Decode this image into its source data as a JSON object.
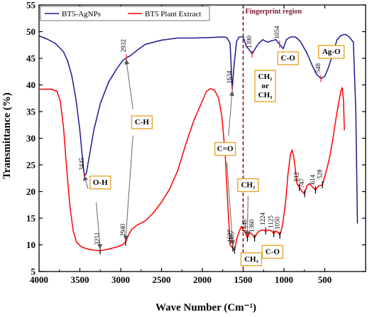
{
  "chart_data": {
    "type": "line",
    "xlabel": "Wave Number (Cm⁻¹)",
    "ylabel": "Transmittance (%)",
    "xlim": [
      4000,
      0
    ],
    "ylim": [
      5,
      55
    ],
    "xticks": [
      4000,
      3500,
      3000,
      2500,
      2000,
      1500,
      1000,
      500
    ],
    "yticks": [
      5,
      10,
      15,
      20,
      25,
      30,
      35,
      40,
      45,
      50,
      55
    ],
    "grid": false,
    "legend_position": "top-left",
    "series": [
      {
        "name": "BT5-AgNPs",
        "color": "#1a1a8c",
        "points": [
          [
            4000,
            49.2
          ],
          [
            3900,
            48.6
          ],
          [
            3800,
            47.8
          ],
          [
            3700,
            46.2
          ],
          [
            3650,
            44.5
          ],
          [
            3600,
            41.8
          ],
          [
            3550,
            37.5
          ],
          [
            3500,
            31.5
          ],
          [
            3470,
            26.5
          ],
          [
            3445,
            22.9
          ],
          [
            3420,
            23.5
          ],
          [
            3380,
            27.0
          ],
          [
            3330,
            31.5
          ],
          [
            3250,
            36.5
          ],
          [
            3150,
            40.5
          ],
          [
            3050,
            43.0
          ],
          [
            2980,
            44.5
          ],
          [
            2932,
            45.1
          ],
          [
            2880,
            45.5
          ],
          [
            2800,
            46.5
          ],
          [
            2700,
            47.6
          ],
          [
            2500,
            48.4
          ],
          [
            2300,
            48.8
          ],
          [
            2100,
            48.8
          ],
          [
            1900,
            48.9
          ],
          [
            1750,
            49.0
          ],
          [
            1700,
            48.9
          ],
          [
            1660,
            47.8
          ],
          [
            1634,
            39.2
          ],
          [
            1610,
            44.0
          ],
          [
            1580,
            48.2
          ],
          [
            1550,
            49.0
          ],
          [
            1500,
            49.0
          ],
          [
            1460,
            47.2
          ],
          [
            1420,
            46.5
          ],
          [
            1390,
            45.8
          ],
          [
            1360,
            46.6
          ],
          [
            1320,
            47.6
          ],
          [
            1260,
            48.5
          ],
          [
            1200,
            48.0
          ],
          [
            1150,
            48.3
          ],
          [
            1100,
            48.5
          ],
          [
            1054,
            47.6
          ],
          [
            1010,
            46.8
          ],
          [
            970,
            48.5
          ],
          [
            920,
            49.0
          ],
          [
            860,
            49.0
          ],
          [
            800,
            48.2
          ],
          [
            720,
            46.0
          ],
          [
            650,
            43.5
          ],
          [
            600,
            42.0
          ],
          [
            548,
            41.2
          ],
          [
            500,
            41.6
          ],
          [
            450,
            43.5
          ],
          [
            400,
            46.0
          ],
          [
            350,
            48.5
          ],
          [
            300,
            49.3
          ],
          [
            250,
            49.5
          ],
          [
            200,
            49.0
          ],
          [
            150,
            48.0
          ],
          [
            120,
            35.0
          ],
          [
            100,
            14.0
          ]
        ]
      },
      {
        "name": "BT5 Plant Extract",
        "color": "#ff0000",
        "points": [
          [
            4000,
            39.2
          ],
          [
            3850,
            39.2
          ],
          [
            3780,
            38.8
          ],
          [
            3740,
            37.0
          ],
          [
            3700,
            32.0
          ],
          [
            3660,
            24.0
          ],
          [
            3620,
            17.0
          ],
          [
            3580,
            12.5
          ],
          [
            3540,
            10.5
          ],
          [
            3480,
            9.6
          ],
          [
            3400,
            9.2
          ],
          [
            3330,
            9.0
          ],
          [
            3251,
            8.9
          ],
          [
            3150,
            9.2
          ],
          [
            3050,
            9.6
          ],
          [
            2980,
            10.0
          ],
          [
            2940,
            10.5
          ],
          [
            2900,
            12.0
          ],
          [
            2860,
            13.0
          ],
          [
            2800,
            13.7
          ],
          [
            2700,
            14.5
          ],
          [
            2600,
            16.0
          ],
          [
            2500,
            18.0
          ],
          [
            2400,
            20.5
          ],
          [
            2300,
            24.0
          ],
          [
            2200,
            29.0
          ],
          [
            2100,
            33.5
          ],
          [
            2000,
            37.0
          ],
          [
            1950,
            38.8
          ],
          [
            1900,
            39.3
          ],
          [
            1850,
            39.0
          ],
          [
            1800,
            37.5
          ],
          [
            1760,
            34.0
          ],
          [
            1720,
            27.0
          ],
          [
            1690,
            18.0
          ],
          [
            1660,
            10.0
          ],
          [
            1627,
            9.4
          ],
          [
            1605,
            9.0
          ],
          [
            1580,
            11.0
          ],
          [
            1550,
            12.5
          ],
          [
            1520,
            13.5
          ],
          [
            1500,
            12.8
          ],
          [
            1470,
            12.2
          ],
          [
            1448,
            11.3
          ],
          [
            1420,
            12.3
          ],
          [
            1390,
            12.0
          ],
          [
            1360,
            11.3
          ],
          [
            1330,
            12.2
          ],
          [
            1300,
            12.6
          ],
          [
            1260,
            12.8
          ],
          [
            1224,
            12.6
          ],
          [
            1190,
            12.8
          ],
          [
            1150,
            12.6
          ],
          [
            1125,
            12.1
          ],
          [
            1100,
            12.6
          ],
          [
            1070,
            12.3
          ],
          [
            1050,
            11.8
          ],
          [
            1020,
            13.5
          ],
          [
            980,
            18.0
          ],
          [
            950,
            23.5
          ],
          [
            920,
            27.0
          ],
          [
            900,
            27.8
          ],
          [
            880,
            26.5
          ],
          [
            860,
            24.0
          ],
          [
            840,
            21.5
          ],
          [
            812,
            20.8
          ],
          [
            780,
            20.0
          ],
          [
            747,
            19.6
          ],
          [
            720,
            21.0
          ],
          [
            690,
            21.5
          ],
          [
            660,
            21.0
          ],
          [
            614,
            20.3
          ],
          [
            580,
            21.0
          ],
          [
            528,
            21.3
          ],
          [
            500,
            22.8
          ],
          [
            470,
            24.5
          ],
          [
            440,
            26.5
          ],
          [
            400,
            30.0
          ],
          [
            360,
            34.0
          ],
          [
            320,
            37.5
          ],
          [
            300,
            39.0
          ],
          [
            285,
            39.5
          ],
          [
            270,
            37.0
          ],
          [
            260,
            31.5
          ]
        ]
      }
    ],
    "peak_labels": {
      "blue": [
        {
          "text": "3445",
          "x": 3445,
          "y": 22.9
        },
        {
          "text": "2932",
          "x": 2932,
          "y": 45.1
        },
        {
          "text": "1634",
          "x": 1634,
          "y": 39.2
        },
        {
          "text": "1390",
          "x": 1390,
          "y": 45.8
        },
        {
          "text": "1054",
          "x": 1054,
          "y": 47.6
        },
        {
          "text": "548",
          "x": 548,
          "y": 41.2
        }
      ],
      "red": [
        {
          "text": "3251",
          "x": 3251,
          "y": 8.9
        },
        {
          "text": "2940",
          "x": 2940,
          "y": 10.5
        },
        {
          "text": "1627",
          "x": 1627,
          "y": 9.4
        },
        {
          "text": "1605",
          "x": 1605,
          "y": 9.0
        },
        {
          "text": "1448",
          "x": 1448,
          "y": 11.3
        },
        {
          "text": "1360",
          "x": 1360,
          "y": 11.3
        },
        {
          "text": "1224",
          "x": 1224,
          "y": 12.6
        },
        {
          "text": "1125",
          "x": 1125,
          "y": 12.1
        },
        {
          "text": "1050",
          "x": 1050,
          "y": 11.8
        },
        {
          "text": "812",
          "x": 812,
          "y": 20.8
        },
        {
          "text": "747",
          "x": 747,
          "y": 19.6
        },
        {
          "text": "614",
          "x": 614,
          "y": 20.3
        },
        {
          "text": "528",
          "x": 528,
          "y": 21.3
        }
      ]
    },
    "fingerprint_region": {
      "label": "Fingerprint region",
      "x": 1500,
      "color": "#7a1c2e"
    },
    "annotations": [
      {
        "name": "ann-o-h",
        "lines": [
          "O-H"
        ],
        "x": 3250,
        "y": 21.7
      },
      {
        "name": "ann-c-h",
        "lines": [
          "C-H"
        ],
        "x": 2740,
        "y": 33.0
      },
      {
        "name": "ann-c-o-top",
        "lines": [
          "C-O"
        ],
        "x": 950,
        "y": 45.0
      },
      {
        "name": "ann-ag-o",
        "lines": [
          "Ag-O"
        ],
        "x": 420,
        "y": 46.2
      },
      {
        "name": "ann-ch2-or-ch3",
        "lines": [
          "CH₂",
          "or",
          "CH₃"
        ],
        "x": 1230,
        "y": 39.8
      },
      {
        "name": "ann-c-eq-o",
        "lines": [
          "C=O"
        ],
        "x": 1720,
        "y": 28.0
      },
      {
        "name": "ann-ch2",
        "lines": [
          "CH₂"
        ],
        "x": 1440,
        "y": 21.2
      },
      {
        "name": "ann-ch3",
        "lines": [
          "CH₃"
        ],
        "x": 1400,
        "y": 7.3
      },
      {
        "name": "ann-c-o-bottom",
        "lines": [
          "C-O"
        ],
        "x": 1140,
        "y": 8.7
      }
    ],
    "arrows": [
      {
        "from": [
          3400,
          20.5
        ],
        "to": [
          3445,
          22.9
        ]
      },
      {
        "from": [
          3300,
          18.0
        ],
        "to": [
          3251,
          9.3
        ]
      },
      {
        "from": [
          2850,
          35.5
        ],
        "to": [
          2932,
          44.7
        ]
      },
      {
        "from": [
          2850,
          30.5
        ],
        "to": [
          2940,
          10.9
        ]
      },
      {
        "from": [
          1680,
          30.5
        ],
        "to": [
          1634,
          38.8
        ]
      },
      {
        "from": [
          1700,
          25.5
        ],
        "to": [
          1627,
          10.0
        ]
      },
      {
        "from": [
          1440,
          19.2
        ],
        "to": [
          1448,
          11.7
        ]
      }
    ]
  }
}
